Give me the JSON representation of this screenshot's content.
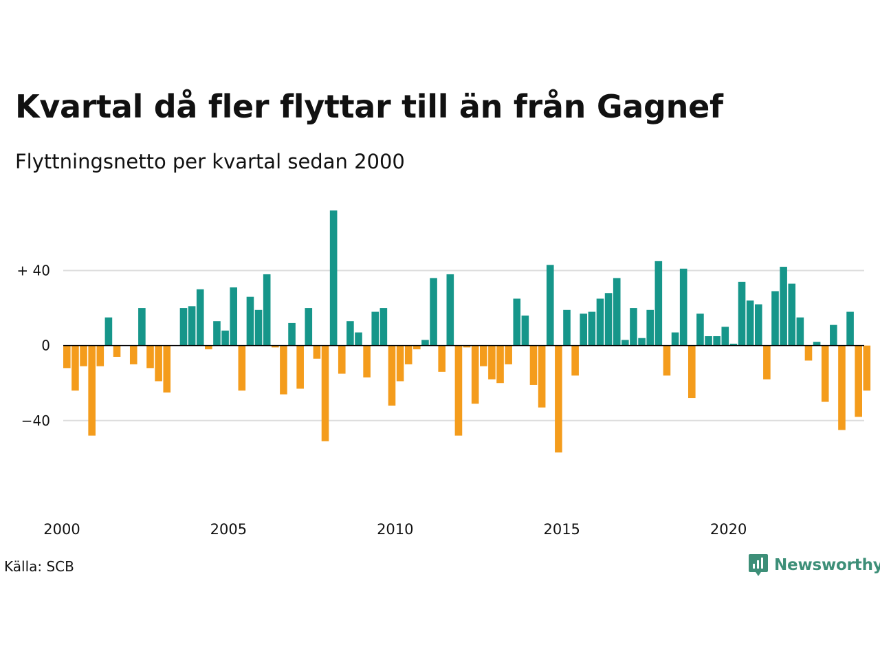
{
  "title": "Kvartal då fler flyttar till än från Gagnef",
  "subtitle": "Flyttningsnetto per kvartal sedan 2000",
  "source": "Källa: SCB",
  "brand": {
    "name": "Newsworthy",
    "icon": "newsworthy-logo-icon",
    "color": "#3d8f78"
  },
  "colors": {
    "positive": "#16968a",
    "negative": "#f49c1c",
    "grid": "#dddddd",
    "zero_line": "#000000"
  },
  "chart_data": {
    "type": "bar",
    "x_start": "2000 Q1",
    "x_ticks": [
      "2000",
      "2005",
      "2010",
      "2015",
      "2020"
    ],
    "y_ticks": [
      "+ 40",
      "0",
      "−40"
    ],
    "y_tick_values": [
      40,
      0,
      -40
    ],
    "ylim": [
      -65,
      75
    ],
    "grid": true,
    "values": [
      -12,
      -24,
      -11,
      -48,
      -11,
      15,
      -6,
      0,
      -10,
      20,
      -12,
      -19,
      -25,
      0,
      20,
      21,
      30,
      -2,
      13,
      8,
      31,
      -24,
      26,
      19,
      38,
      -1,
      -26,
      12,
      -23,
      20,
      -7,
      -51,
      72,
      -15,
      13,
      7,
      -17,
      18,
      20,
      -32,
      -19,
      -10,
      -2,
      3,
      36,
      -14,
      38,
      -48,
      -1,
      -31,
      -11,
      -18,
      -20,
      -10,
      25,
      16,
      -21,
      -33,
      43,
      -57,
      19,
      -16,
      17,
      18,
      25,
      28,
      36,
      3,
      20,
      4,
      19,
      45,
      -16,
      7,
      41,
      -28,
      17,
      5,
      5,
      10,
      1,
      34,
      24,
      22,
      -18,
      29,
      42,
      33,
      15,
      -8,
      2,
      -30,
      11,
      -45,
      18,
      -38,
      -24
    ]
  }
}
